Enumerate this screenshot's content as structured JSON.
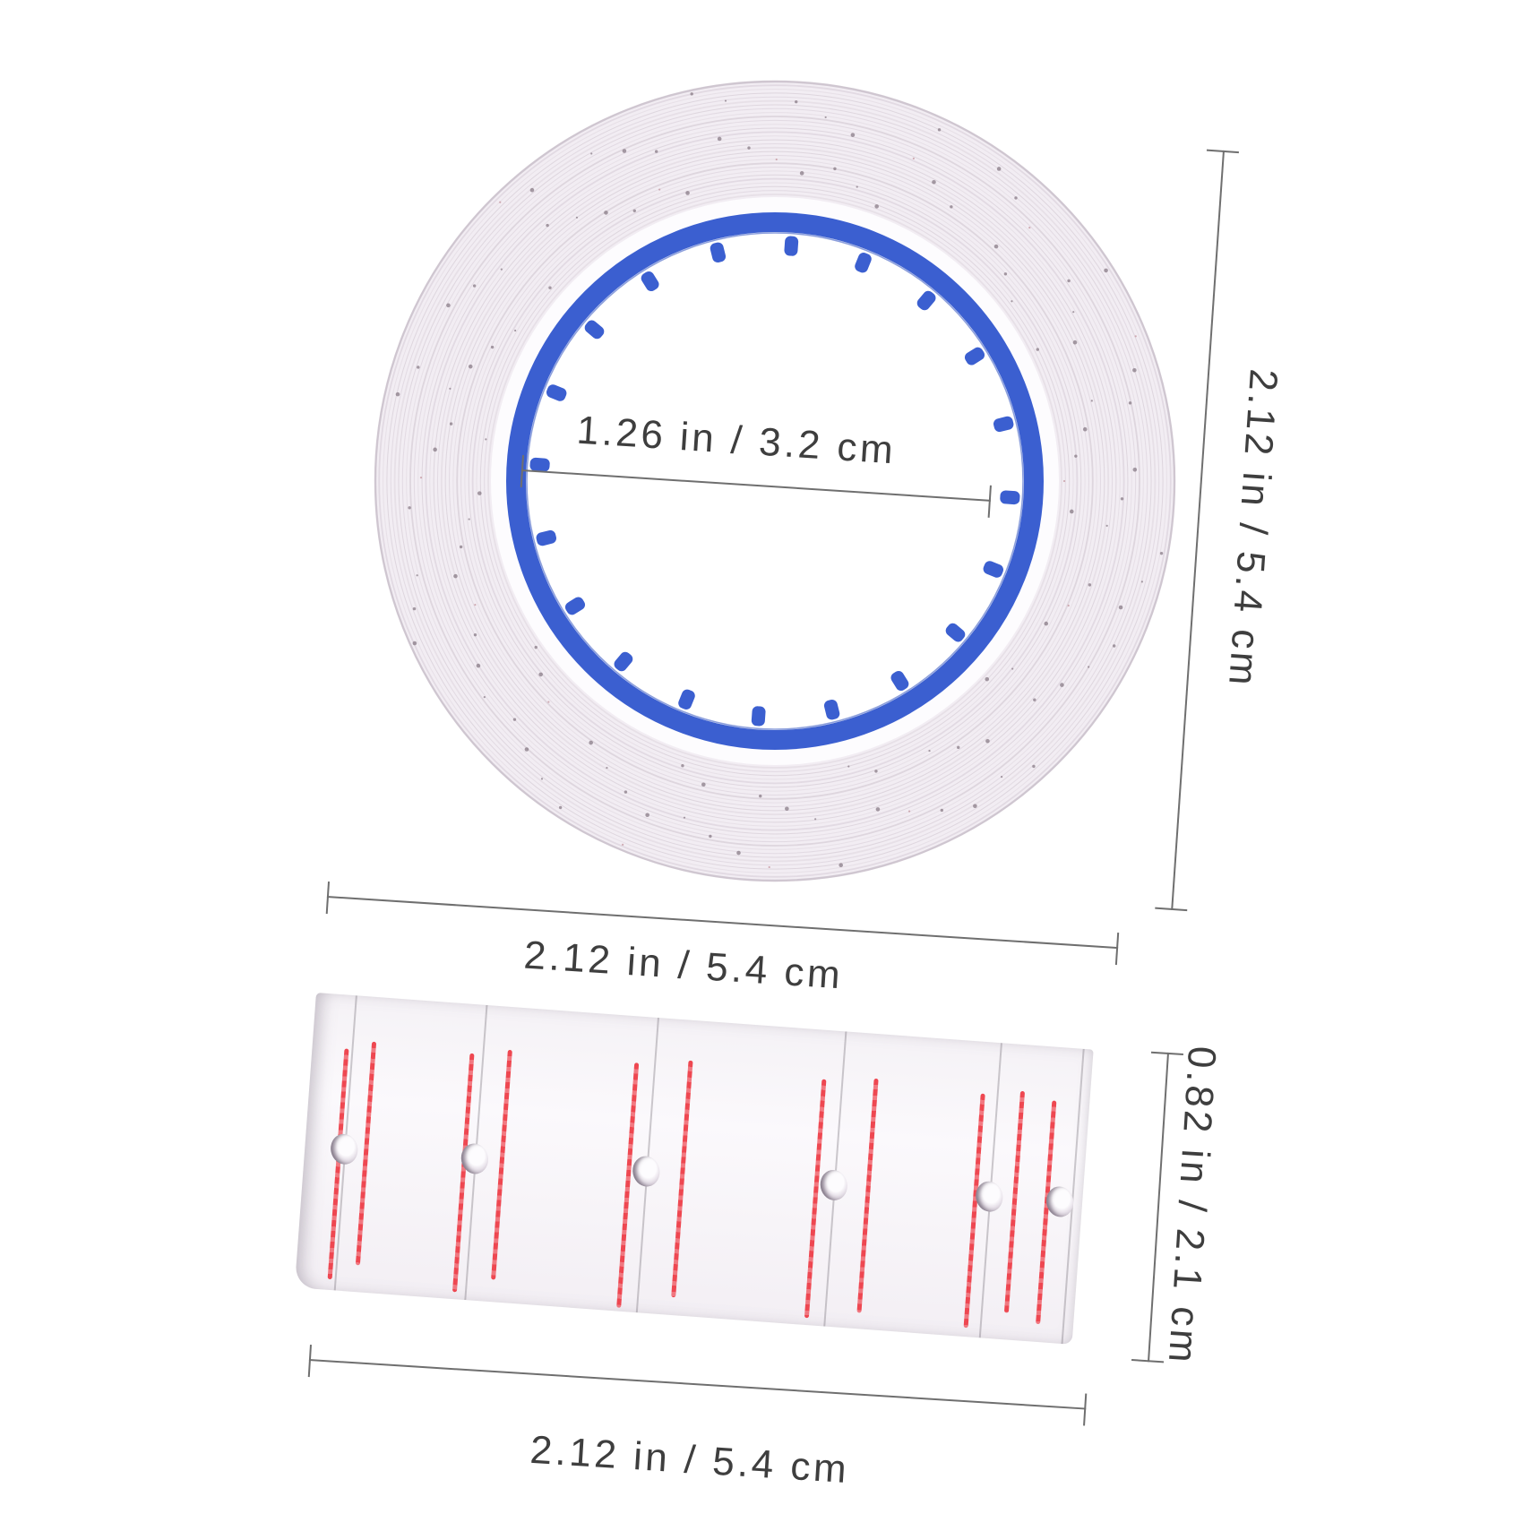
{
  "page": {
    "background": "#ffffff"
  },
  "colors": {
    "core_blue": "#3b5fd0",
    "label_red": "#ee4149",
    "dimension_line": "#6f6f6f",
    "dimension_text": "#3e3e3e",
    "strip_paper": "#faf8fb",
    "tape_ring": "#d9d0d9"
  },
  "annotations": {
    "inner_diameter": "1.26 in / 3.2 cm",
    "roll_height": "2.12 in / 5.4 cm",
    "roll_width": "2.12 in / 5.4 cm",
    "strip_height": "0.82 in / 2.1 cm",
    "strip_width": "2.12 in / 5.4 cm"
  }
}
